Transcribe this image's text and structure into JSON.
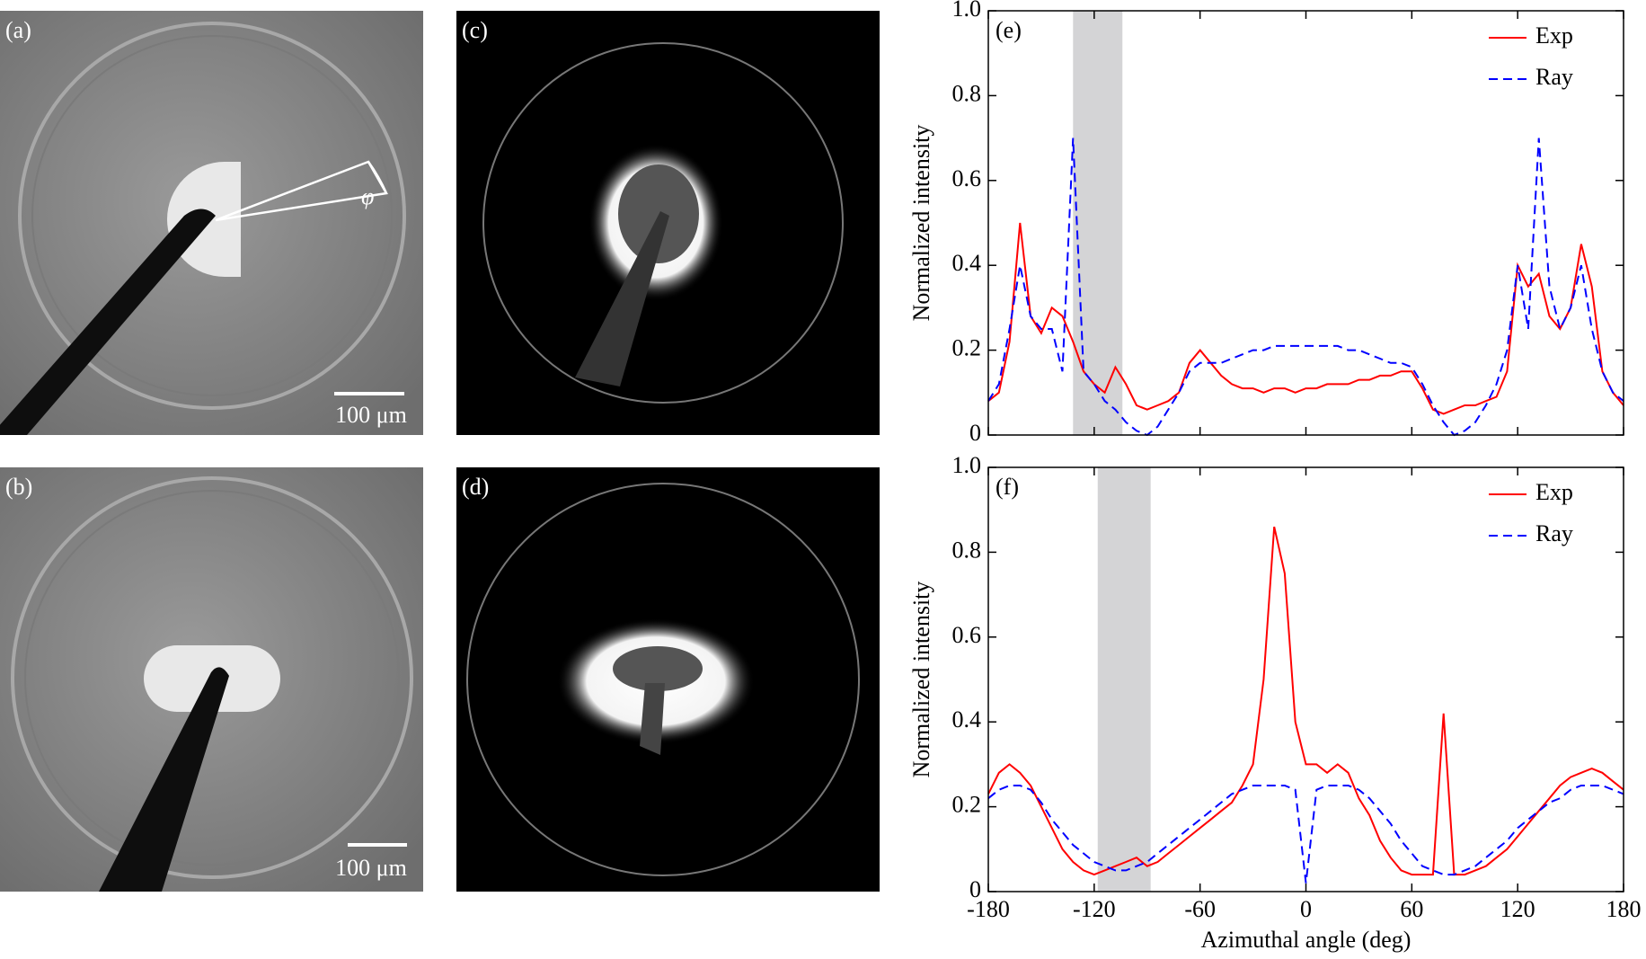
{
  "panels": [
    {
      "label": "(a)",
      "scale_bar": "100 μm",
      "angle_label": "φ"
    },
    {
      "label": "(b)",
      "scale_bar": "100 μm"
    },
    {
      "label": "(c)"
    },
    {
      "label": "(d)"
    }
  ],
  "chart_data": [
    {
      "type": "line",
      "label": "(e)",
      "ylabel": "Normalized intensity",
      "x": [
        -180,
        -174,
        -168,
        -162,
        -156,
        -150,
        -144,
        -138,
        -132,
        -126,
        -120,
        -114,
        -108,
        -102,
        -96,
        -90,
        -84,
        -78,
        -72,
        -66,
        -60,
        -54,
        -48,
        -42,
        -36,
        -30,
        -24,
        -18,
        -12,
        -6,
        0,
        6,
        12,
        18,
        24,
        30,
        36,
        42,
        48,
        54,
        60,
        66,
        72,
        78,
        84,
        90,
        96,
        102,
        108,
        114,
        120,
        126,
        132,
        138,
        144,
        150,
        156,
        162,
        168,
        174,
        180
      ],
      "series": [
        {
          "name": "Exp",
          "color": "#ff0000",
          "dash": false,
          "values": [
            0.08,
            0.1,
            0.22,
            0.5,
            0.28,
            0.24,
            0.3,
            0.28,
            0.22,
            0.15,
            0.12,
            0.1,
            0.16,
            0.12,
            0.07,
            0.06,
            0.07,
            0.08,
            0.1,
            0.17,
            0.2,
            0.17,
            0.14,
            0.12,
            0.11,
            0.11,
            0.1,
            0.11,
            0.11,
            0.1,
            0.11,
            0.11,
            0.12,
            0.12,
            0.12,
            0.13,
            0.13,
            0.14,
            0.14,
            0.15,
            0.15,
            0.11,
            0.06,
            0.05,
            0.06,
            0.07,
            0.07,
            0.08,
            0.09,
            0.15,
            0.4,
            0.35,
            0.38,
            0.28,
            0.25,
            0.3,
            0.45,
            0.35,
            0.15,
            0.1,
            0.07
          ]
        },
        {
          "name": "Ray",
          "color": "#0000ff",
          "dash": true,
          "values": [
            0.08,
            0.12,
            0.25,
            0.4,
            0.28,
            0.25,
            0.25,
            0.15,
            0.7,
            0.15,
            0.12,
            0.08,
            0.06,
            0.03,
            0.01,
            0.0,
            0.02,
            0.06,
            0.1,
            0.15,
            0.17,
            0.17,
            0.17,
            0.18,
            0.19,
            0.2,
            0.2,
            0.21,
            0.21,
            0.21,
            0.21,
            0.21,
            0.21,
            0.21,
            0.2,
            0.2,
            0.19,
            0.18,
            0.17,
            0.17,
            0.16,
            0.12,
            0.07,
            0.03,
            0.0,
            0.01,
            0.03,
            0.07,
            0.12,
            0.2,
            0.4,
            0.25,
            0.7,
            0.35,
            0.25,
            0.3,
            0.4,
            0.25,
            0.15,
            0.1,
            0.08
          ]
        }
      ],
      "shaded_span": [
        -132,
        -104
      ],
      "xlim": [
        -180,
        180
      ],
      "xticks": [
        -180,
        -120,
        -60,
        0,
        60,
        120,
        180
      ],
      "ylim": [
        0,
        1
      ],
      "yticks": [
        0,
        0.2,
        0.4,
        0.6,
        0.8,
        {
          "value": 1,
          "label": "1.0"
        }
      ],
      "legend": "top-right"
    },
    {
      "type": "line",
      "label": "(f)",
      "ylabel": "Normalized intensity",
      "xlabel": "Azimuthal angle (deg)",
      "x": [
        -180,
        -174,
        -168,
        -162,
        -156,
        -150,
        -144,
        -138,
        -132,
        -126,
        -120,
        -114,
        -108,
        -102,
        -96,
        -90,
        -84,
        -78,
        -72,
        -66,
        -60,
        -54,
        -48,
        -42,
        -36,
        -30,
        -24,
        -18,
        -12,
        -6,
        0,
        6,
        12,
        18,
        24,
        30,
        36,
        42,
        48,
        54,
        60,
        66,
        72,
        78,
        84,
        90,
        96,
        102,
        108,
        114,
        120,
        126,
        132,
        138,
        144,
        150,
        156,
        162,
        168,
        174,
        180
      ],
      "series": [
        {
          "name": "Exp",
          "color": "#ff0000",
          "dash": false,
          "values": [
            0.23,
            0.28,
            0.3,
            0.28,
            0.25,
            0.2,
            0.15,
            0.1,
            0.07,
            0.05,
            0.04,
            0.05,
            0.06,
            0.07,
            0.08,
            0.06,
            0.07,
            0.09,
            0.11,
            0.13,
            0.15,
            0.17,
            0.19,
            0.21,
            0.25,
            0.3,
            0.5,
            0.86,
            0.75,
            0.4,
            0.3,
            0.3,
            0.28,
            0.3,
            0.28,
            0.22,
            0.18,
            0.12,
            0.08,
            0.05,
            0.04,
            0.04,
            0.04,
            0.42,
            0.04,
            0.04,
            0.05,
            0.06,
            0.08,
            0.1,
            0.13,
            0.16,
            0.19,
            0.22,
            0.25,
            0.27,
            0.28,
            0.29,
            0.28,
            0.26,
            0.24
          ]
        },
        {
          "name": "Ray",
          "color": "#0000ff",
          "dash": true,
          "values": [
            0.22,
            0.24,
            0.25,
            0.25,
            0.24,
            0.21,
            0.17,
            0.14,
            0.11,
            0.09,
            0.07,
            0.06,
            0.05,
            0.05,
            0.06,
            0.07,
            0.09,
            0.11,
            0.13,
            0.15,
            0.17,
            0.19,
            0.21,
            0.23,
            0.24,
            0.25,
            0.25,
            0.25,
            0.25,
            0.24,
            0.02,
            0.24,
            0.25,
            0.25,
            0.25,
            0.24,
            0.22,
            0.19,
            0.16,
            0.12,
            0.09,
            0.06,
            0.05,
            0.04,
            0.04,
            0.05,
            0.06,
            0.08,
            0.1,
            0.12,
            0.15,
            0.17,
            0.19,
            0.21,
            0.22,
            0.24,
            0.25,
            0.25,
            0.25,
            0.24,
            0.23
          ]
        }
      ],
      "shaded_span": [
        -118,
        -88
      ],
      "xlim": [
        -180,
        180
      ],
      "xticks": [
        -180,
        -120,
        -60,
        0,
        60,
        120,
        180
      ],
      "ylim": [
        0,
        1
      ],
      "yticks": [
        0,
        0.2,
        0.4,
        0.6,
        0.8,
        {
          "value": 1,
          "label": "1.0"
        }
      ],
      "legend": "top-right"
    }
  ]
}
